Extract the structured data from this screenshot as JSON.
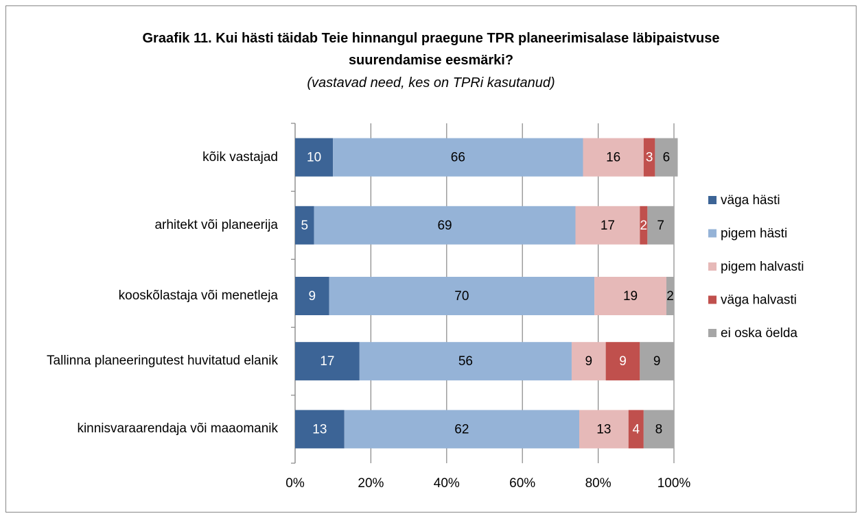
{
  "chart_data": {
    "type": "stacked-bar-horizontal",
    "title": "Graafik 11. Kui hästi täidab Teie hinnangul praegune TPR planeerimisalase läbipaistvuse suurendamise eesmärki?",
    "subtitle": "(vastavad need, kes on TPRi kasutanud)",
    "categories": [
      "kõik vastajad",
      "arhitekt või planeerija",
      "kooskõlastaja või menetleja",
      "Tallinna planeeringutest huvitatud elanik",
      "kinnisvaraarendaja või maaomanik"
    ],
    "series": [
      {
        "name": "väga hästi",
        "color": "#3c6496",
        "label_color": "#ffffff",
        "values": [
          10,
          5,
          9,
          17,
          13
        ]
      },
      {
        "name": "pigem hästi",
        "color": "#95b3d7",
        "label_color": "#000000",
        "values": [
          66,
          69,
          70,
          56,
          62
        ]
      },
      {
        "name": "pigem halvasti",
        "color": "#e6b9b8",
        "label_color": "#000000",
        "values": [
          16,
          17,
          19,
          9,
          13
        ]
      },
      {
        "name": "väga halvasti",
        "color": "#c0504d",
        "label_color": "#ffffff",
        "values": [
          3,
          2,
          0,
          9,
          4
        ]
      },
      {
        "name": "ei oska öelda",
        "color": "#a6a6a6",
        "label_color": "#000000",
        "values": [
          6,
          7,
          2,
          9,
          8
        ]
      }
    ],
    "xlim": [
      0,
      100
    ],
    "xticks": [
      {
        "value": 0,
        "label": "0%"
      },
      {
        "value": 20,
        "label": "20%"
      },
      {
        "value": 40,
        "label": "40%"
      },
      {
        "value": 60,
        "label": "60%"
      },
      {
        "value": 80,
        "label": "80%"
      },
      {
        "value": 100,
        "label": "100%"
      }
    ],
    "grid": true,
    "legend": "right"
  }
}
